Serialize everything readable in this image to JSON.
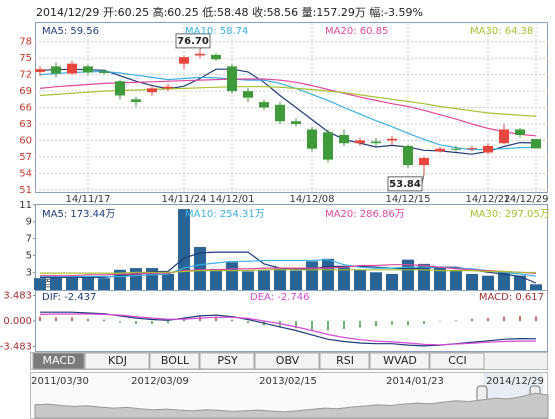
{
  "header": "2014/12/29  开:60.25  高:60.25  低:58.48  收:58.56  量:157.29万  幅:-3.59%",
  "tabs": [
    "MACD",
    "KDJ",
    "BOLL",
    "PSY",
    "OBV",
    "RSI",
    "WVAD",
    "CCI"
  ],
  "chart_data": [
    {
      "type": "candlestick",
      "categories": [
        null,
        null,
        null,
        "14/11/17",
        null,
        null,
        null,
        null,
        null,
        "14/11/24",
        null,
        null,
        "14/12/01",
        null,
        null,
        null,
        null,
        "14/12/08",
        null,
        null,
        null,
        null,
        null,
        "14/12/15",
        null,
        null,
        null,
        null,
        "14/12/22",
        null,
        null,
        "14/12/29"
      ],
      "open": [
        72.5,
        73.5,
        72.2,
        73.5,
        72.6,
        70.8,
        67.5,
        68.8,
        69.5,
        74.0,
        75.5,
        75.6,
        73.5,
        69.0,
        67.0,
        66.5,
        63.5,
        62.0,
        61.5,
        61.0,
        59.5,
        59.8,
        60.0,
        59.0,
        55.5,
        58.0,
        58.5,
        58.5,
        57.8,
        59.5,
        62.0,
        60.25
      ],
      "high": [
        73.5,
        74.2,
        74.5,
        73.8,
        73.0,
        71.0,
        68.0,
        69.8,
        70.3,
        75.5,
        76.7,
        75.9,
        74.0,
        69.5,
        67.5,
        67.0,
        64.0,
        62.5,
        62.0,
        62.0,
        60.5,
        60.5,
        60.8,
        59.2,
        57.0,
        58.8,
        59.0,
        59.0,
        59.5,
        63.0,
        62.3,
        60.25
      ],
      "low": [
        71.8,
        71.5,
        72.0,
        72.0,
        72.0,
        67.5,
        66.2,
        68.2,
        69.0,
        73.0,
        75.0,
        74.5,
        68.5,
        67.0,
        65.5,
        63.0,
        62.5,
        58.0,
        56.0,
        59.0,
        59.0,
        59.0,
        59.2,
        55.0,
        53.84,
        57.8,
        58.0,
        58.0,
        57.5,
        59.3,
        60.5,
        58.48
      ],
      "close": [
        73.0,
        72.2,
        74.0,
        72.4,
        72.3,
        68.2,
        67.0,
        69.5,
        69.8,
        75.2,
        75.8,
        74.8,
        69.0,
        67.8,
        66.0,
        63.5,
        63.0,
        58.5,
        56.5,
        59.5,
        60.0,
        59.5,
        60.3,
        55.5,
        56.8,
        58.5,
        58.3,
        58.6,
        59.0,
        62.0,
        61.0,
        58.56
      ],
      "up_color": "#e8463c",
      "down_color": "#3f9a3c",
      "annotations": [
        "76.70",
        "53.84"
      ],
      "series": [
        {
          "name": "MA5: 59.56",
          "color": "#1e3c78",
          "values": [
            72.8,
            72.9,
            73.0,
            72.9,
            72.8,
            71.8,
            70.8,
            70.0,
            69.4,
            69.9,
            71.3,
            73.0,
            73.0,
            72.5,
            70.6,
            68.2,
            66.0,
            63.8,
            61.6,
            60.2,
            59.5,
            58.8,
            59.1,
            58.8,
            58.2,
            58.1,
            57.8,
            57.5,
            58.0,
            58.9,
            59.6,
            59.56
          ]
        },
        {
          "name": "MA10: 58.74",
          "color": "#3ab0e0",
          "values": [
            72.0,
            72.2,
            72.4,
            72.5,
            72.6,
            72.3,
            71.9,
            71.5,
            71.1,
            71.3,
            71.5,
            71.4,
            71.2,
            71.0,
            71.0,
            70.4,
            69.5,
            68.4,
            67.3,
            66.0,
            64.8,
            63.6,
            62.5,
            61.3,
            60.2,
            59.2,
            58.7,
            58.3,
            58.4,
            58.5,
            58.7,
            58.74
          ]
        },
        {
          "name": "MA20: 60.85",
          "color": "#e0489a",
          "values": [
            69.5,
            69.8,
            70.0,
            70.2,
            70.4,
            70.5,
            70.6,
            70.7,
            70.8,
            70.9,
            71.0,
            71.1,
            71.2,
            71.2,
            71.2,
            71.0,
            70.6,
            70.0,
            69.3,
            68.6,
            67.9,
            67.3,
            66.7,
            66.2,
            65.5,
            64.7,
            63.9,
            63.0,
            62.2,
            61.6,
            61.1,
            60.85
          ]
        },
        {
          "name": "MA30: 64.38",
          "color": "#a8c030",
          "values": [
            68.2,
            68.4,
            68.6,
            68.8,
            69.0,
            69.1,
            69.2,
            69.3,
            69.4,
            69.5,
            69.6,
            69.7,
            69.8,
            69.8,
            69.8,
            69.7,
            69.5,
            69.3,
            69.0,
            68.7,
            68.3,
            67.9,
            67.5,
            67.1,
            66.7,
            66.2,
            65.8,
            65.4,
            65.0,
            64.8,
            64.6,
            64.38
          ]
        }
      ],
      "ylim": [
        50.6,
        81.6
      ],
      "yticks": [
        78,
        75,
        72,
        69,
        66,
        63,
        60,
        57,
        54,
        51
      ],
      "grid": true
    },
    {
      "type": "bar",
      "color": "#2a6496",
      "y_unit": "x百万",
      "values": [
        2.3,
        2.4,
        2.5,
        2.4,
        2.3,
        3.3,
        3.5,
        3.5,
        2.8,
        10.5,
        6.0,
        3.4,
        4.2,
        3.1,
        3.2,
        3.4,
        3.2,
        4.3,
        4.6,
        3.6,
        3.3,
        3.0,
        2.8,
        4.5,
        4.0,
        3.6,
        3.2,
        2.8,
        2.6,
        3.0,
        2.6,
        1.5729
      ],
      "series": [
        {
          "name": "MA5: 173.44万",
          "color": "#1e3c78",
          "values": [
            2.4,
            2.4,
            2.4,
            2.4,
            2.4,
            2.6,
            2.8,
            3.1,
            3.1,
            4.7,
            5.3,
            5.4,
            5.4,
            5.4,
            4.0,
            3.5,
            3.4,
            3.4,
            3.7,
            3.7,
            3.7,
            3.6,
            3.5,
            3.4,
            3.5,
            3.6,
            3.6,
            3.3,
            3.0,
            2.8,
            2.5,
            1.7344
          ]
        },
        {
          "name": "MA10: 254.31万",
          "color": "#3ab0e0",
          "values": [
            2.5,
            2.5,
            2.5,
            2.5,
            2.5,
            2.5,
            2.6,
            2.7,
            2.8,
            3.5,
            3.9,
            4.1,
            4.3,
            4.3,
            4.4,
            4.4,
            4.4,
            4.4,
            4.5,
            3.9,
            3.6,
            3.5,
            3.5,
            3.6,
            3.6,
            3.6,
            3.5,
            3.4,
            3.2,
            3.0,
            2.8,
            2.5431
          ]
        },
        {
          "name": "MA20: 286.86万",
          "color": "#e0489a",
          "values": [
            2.6,
            2.6,
            2.6,
            2.7,
            2.7,
            2.8,
            2.8,
            2.9,
            2.9,
            3.2,
            3.3,
            3.3,
            3.4,
            3.4,
            3.5,
            3.5,
            3.5,
            3.5,
            3.5,
            3.6,
            3.8,
            3.8,
            3.9,
            3.9,
            3.8,
            3.6,
            3.4,
            3.3,
            3.2,
            3.1,
            3.0,
            2.8686
          ]
        },
        {
          "name": "MA30: 297.05万",
          "color": "#a8c030",
          "values": [
            2.9,
            2.9,
            2.9,
            2.9,
            2.9,
            2.9,
            3.0,
            3.0,
            3.0,
            3.1,
            3.2,
            3.2,
            3.2,
            3.2,
            3.3,
            3.3,
            3.3,
            3.3,
            3.3,
            3.3,
            3.3,
            3.3,
            3.3,
            3.3,
            3.3,
            3.2,
            3.2,
            3.2,
            3.1,
            3.1,
            3.0,
            2.9705
          ]
        }
      ],
      "ylim": [
        0.9,
        11.1
      ],
      "yticks": [
        11,
        9,
        7,
        5,
        3
      ]
    },
    {
      "type": "macd",
      "name": "MACD: 0.617",
      "up_color": "#c0392b",
      "down_color": "#3f9a3c",
      "values": [
        0.6,
        0.5,
        0.5,
        0.3,
        0.2,
        -0.2,
        -0.4,
        -0.4,
        -0.3,
        0.3,
        0.6,
        0.6,
        0.2,
        -0.3,
        -0.6,
        -0.9,
        -1.0,
        -1.2,
        -1.3,
        -1.1,
        -0.9,
        -0.7,
        -0.5,
        -0.6,
        -0.4,
        -0.1,
        0.1,
        0.3,
        0.4,
        0.6,
        0.7,
        0.617
      ],
      "series": [
        {
          "name": "DIF: -2.437",
          "color": "#1e3c78",
          "values": [
            1.2,
            1.2,
            1.2,
            1.1,
            1.0,
            0.7,
            0.4,
            0.2,
            0.1,
            0.4,
            0.7,
            0.8,
            0.6,
            0.2,
            -0.3,
            -0.8,
            -1.3,
            -1.9,
            -2.5,
            -2.8,
            -3.0,
            -3.1,
            -3.1,
            -3.3,
            -3.4,
            -3.3,
            -3.1,
            -2.9,
            -2.7,
            -2.5,
            -2.4,
            -2.437
          ]
        },
        {
          "name": "DEA: -2.746",
          "color": "#d64ad6",
          "values": [
            0.9,
            0.95,
            0.95,
            0.95,
            0.9,
            0.8,
            0.6,
            0.4,
            0.25,
            0.25,
            0.4,
            0.5,
            0.5,
            0.35,
            0.0,
            -0.35,
            -0.8,
            -1.3,
            -1.85,
            -2.25,
            -2.55,
            -2.75,
            -2.85,
            -3.0,
            -3.2,
            -3.25,
            -3.15,
            -3.05,
            -2.9,
            -2.8,
            -2.75,
            -2.746
          ]
        }
      ],
      "ylim": [
        -4.1,
        4.1
      ],
      "yticks": [
        3.483,
        {
          "value": 0,
          "label": "0.000"
        },
        -3.483
      ]
    },
    {
      "type": "area",
      "color": "#c8c8c8",
      "date_labels": [
        "2011/03/30",
        "2012/03/09",
        "2013/02/15",
        "2014/01/23",
        "2014/12/29"
      ],
      "values": [
        40,
        42,
        38,
        35,
        37,
        33,
        30,
        32,
        28,
        25,
        27,
        24,
        22,
        25,
        23,
        20,
        22,
        24,
        21,
        19,
        22,
        26,
        30,
        28,
        33,
        36,
        40,
        38,
        42,
        45,
        43,
        48,
        52,
        50,
        55,
        60,
        58,
        65,
        75,
        70
      ],
      "ylim": [
        0,
        100
      ]
    }
  ]
}
